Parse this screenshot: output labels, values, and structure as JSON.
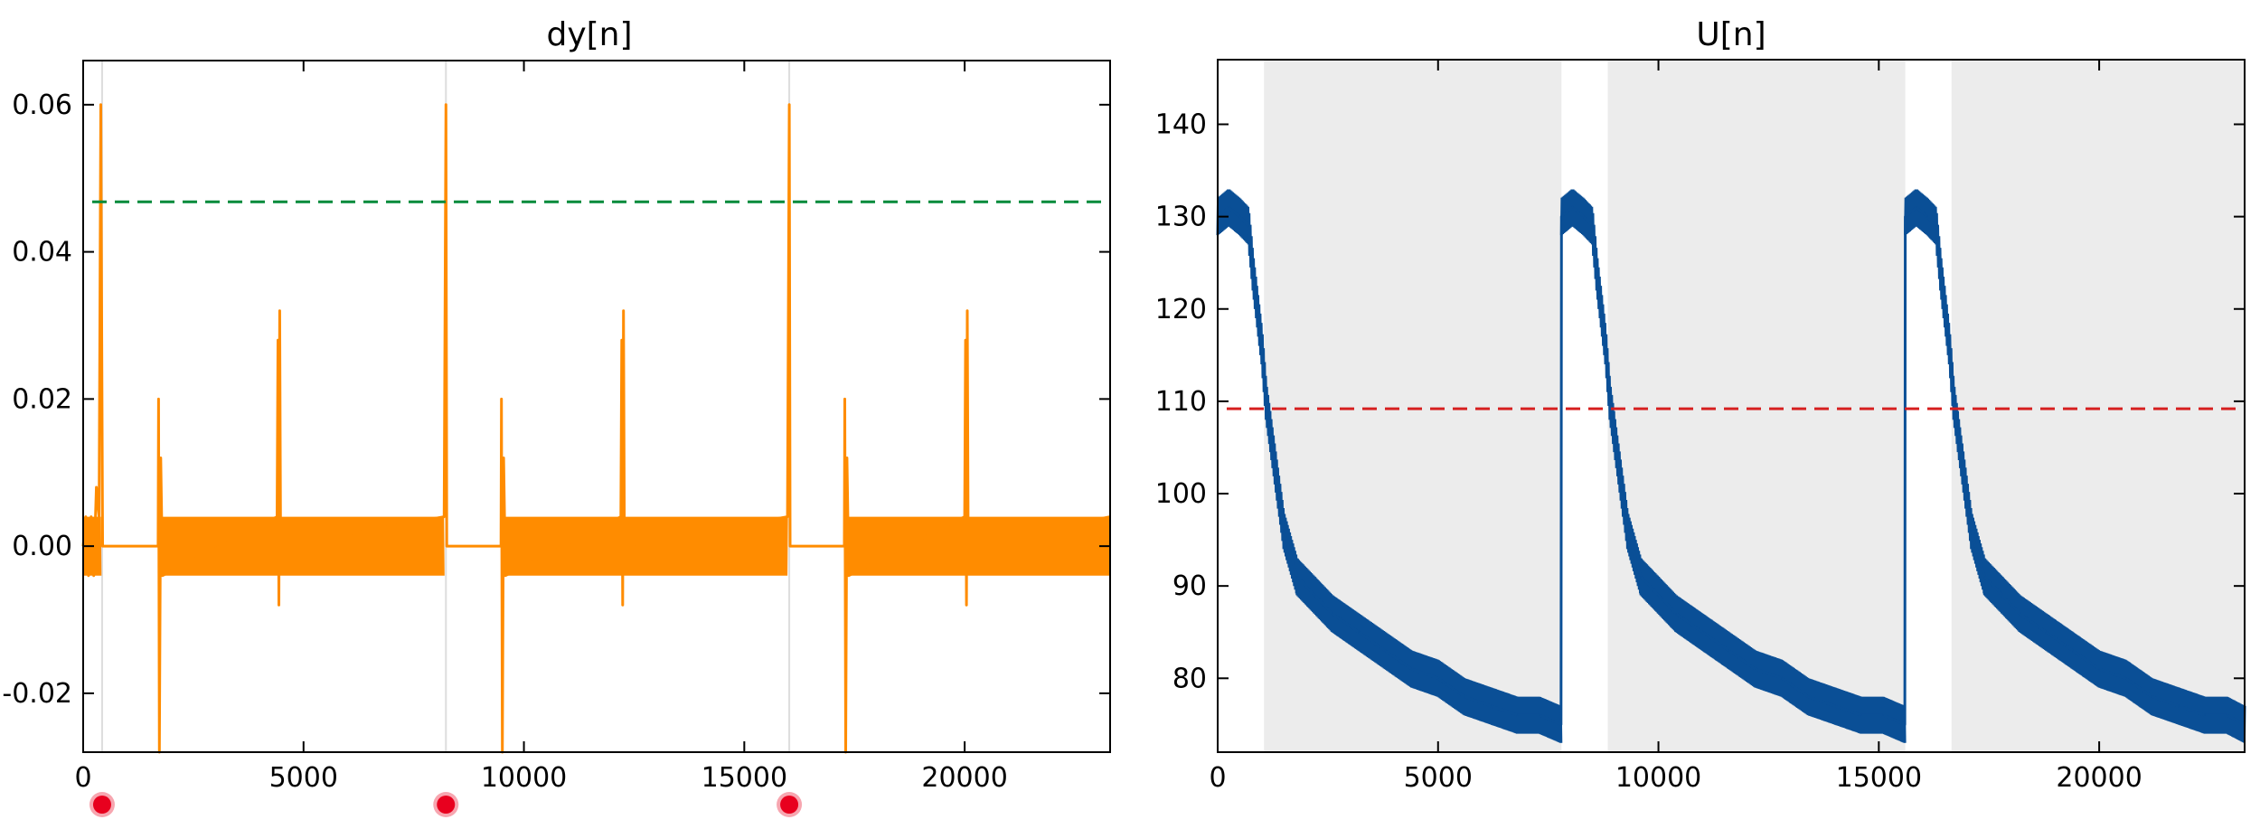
{
  "chart_data": [
    {
      "type": "line",
      "title": "dy[n]",
      "xlabel": "",
      "ylabel": "",
      "xlim": [
        0,
        23300
      ],
      "ylim": [
        -0.028,
        0.066
      ],
      "xticks": [
        0,
        5000,
        10000,
        15000,
        20000
      ],
      "xtick_labels": [
        "0",
        "5000",
        "10000",
        "15000",
        "20000"
      ],
      "yticks": [
        -0.02,
        0.0,
        0.02,
        0.04,
        0.06
      ],
      "ytick_labels": [
        "-0.02",
        "0.00",
        "0.02",
        "0.04",
        "0.06"
      ],
      "grid": false,
      "threshold": {
        "y": 0.0468,
        "color": "#008a3a",
        "style": "dashed"
      },
      "event_markers": {
        "x": [
          430,
          8230,
          16020
        ],
        "color": "#e8001e",
        "line_color": "#dddddd"
      },
      "series": [
        {
          "color": "#ff8c00",
          "points": [
            [
              0,
              0.0
            ],
            [
              60,
              0.004
            ],
            [
              120,
              -0.004
            ],
            [
              180,
              0.004
            ],
            [
              240,
              -0.004
            ],
            [
              300,
              0.008
            ],
            [
              360,
              0.004
            ],
            [
              400,
              0.06
            ],
            [
              440,
              0.0
            ],
            [
              1700,
              0.0
            ],
            [
              1710,
              0.02
            ],
            [
              1730,
              -0.028
            ],
            [
              1760,
              0.012
            ],
            [
              1800,
              -0.004
            ],
            [
              4400,
              0.004
            ],
            [
              4420,
              0.028
            ],
            [
              4440,
              -0.008
            ],
            [
              4460,
              0.032
            ],
            [
              4480,
              0.0
            ],
            [
              8190,
              0.004
            ],
            [
              8230,
              0.06
            ],
            [
              8250,
              0.0
            ],
            [
              9480,
              0.0
            ],
            [
              9490,
              0.02
            ],
            [
              9510,
              -0.028
            ],
            [
              9540,
              0.012
            ],
            [
              9580,
              -0.004
            ],
            [
              12200,
              0.004
            ],
            [
              12220,
              0.028
            ],
            [
              12240,
              -0.008
            ],
            [
              12260,
              0.032
            ],
            [
              12280,
              0.0
            ],
            [
              15980,
              0.004
            ],
            [
              16020,
              0.06
            ],
            [
              16040,
              0.0
            ],
            [
              17270,
              0.0
            ],
            [
              17280,
              0.02
            ],
            [
              17300,
              -0.028
            ],
            [
              17330,
              0.012
            ],
            [
              17370,
              -0.004
            ],
            [
              20000,
              0.004
            ],
            [
              20020,
              0.028
            ],
            [
              20040,
              -0.008
            ],
            [
              20060,
              0.032
            ],
            [
              20080,
              0.0
            ],
            [
              23300,
              0.004
            ]
          ],
          "noise_bands": [
            {
              "x": [
                0,
                400
              ],
              "y": [
                -0.004,
                0.004
              ]
            },
            {
              "x": [
                1760,
                8190
              ],
              "y": [
                -0.004,
                0.004
              ]
            },
            {
              "x": [
                9540,
                15980
              ],
              "y": [
                -0.004,
                0.004
              ]
            },
            {
              "x": [
                17330,
                23300
              ],
              "y": [
                -0.004,
                0.004
              ]
            }
          ]
        }
      ]
    },
    {
      "type": "line",
      "title": "U[n]",
      "xlabel": "",
      "ylabel": "",
      "xlim": [
        0,
        23300
      ],
      "ylim": [
        72,
        147
      ],
      "xticks": [
        0,
        5000,
        10000,
        15000,
        20000
      ],
      "xtick_labels": [
        "0",
        "5000",
        "10000",
        "15000",
        "20000"
      ],
      "yticks": [
        80,
        90,
        100,
        110,
        120,
        130,
        140
      ],
      "ytick_labels": [
        "80",
        "90",
        "100",
        "110",
        "120",
        "130",
        "140"
      ],
      "grid": false,
      "threshold": {
        "y": 109.2,
        "color": "#d62020",
        "style": "dashed"
      },
      "shaded_regions": {
        "color": "#ececec",
        "ranges": [
          [
            1050,
            7800
          ],
          [
            8850,
            15600
          ],
          [
            16650,
            23300
          ]
        ]
      },
      "series": [
        {
          "color": "#0a4f96",
          "points": [
            [
              0,
              130
            ],
            [
              250,
              131
            ],
            [
              500,
              130
            ],
            [
              700,
              129
            ],
            [
              800,
              124
            ],
            [
              1000,
              116
            ],
            [
              1100,
              110
            ],
            [
              1300,
              103
            ],
            [
              1500,
              96
            ],
            [
              1800,
              91
            ],
            [
              2200,
              89
            ],
            [
              2600,
              87
            ],
            [
              3200,
              85
            ],
            [
              3800,
              83
            ],
            [
              4400,
              81
            ],
            [
              5000,
              80
            ],
            [
              5600,
              78
            ],
            [
              6200,
              77
            ],
            [
              6800,
              76
            ],
            [
              7300,
              76
            ],
            [
              7790,
              75
            ],
            [
              7800,
              130
            ],
            [
              8050,
              131
            ],
            [
              8300,
              130
            ],
            [
              8500,
              129
            ],
            [
              8600,
              124
            ],
            [
              8800,
              116
            ],
            [
              8900,
              110
            ],
            [
              9100,
              103
            ],
            [
              9300,
              96
            ],
            [
              9600,
              91
            ],
            [
              10000,
              89
            ],
            [
              10400,
              87
            ],
            [
              11000,
              85
            ],
            [
              11600,
              83
            ],
            [
              12200,
              81
            ],
            [
              12800,
              80
            ],
            [
              13400,
              78
            ],
            [
              14000,
              77
            ],
            [
              14600,
              76
            ],
            [
              15100,
              76
            ],
            [
              15590,
              75
            ],
            [
              15600,
              130
            ],
            [
              15850,
              131
            ],
            [
              16100,
              130
            ],
            [
              16300,
              129
            ],
            [
              16400,
              124
            ],
            [
              16600,
              116
            ],
            [
              16700,
              110
            ],
            [
              16900,
              103
            ],
            [
              17100,
              96
            ],
            [
              17400,
              91
            ],
            [
              17800,
              89
            ],
            [
              18200,
              87
            ],
            [
              18800,
              85
            ],
            [
              19400,
              83
            ],
            [
              20000,
              81
            ],
            [
              20600,
              80
            ],
            [
              21200,
              78
            ],
            [
              21800,
              77
            ],
            [
              22400,
              76
            ],
            [
              22900,
              76
            ],
            [
              23300,
              75
            ]
          ],
          "band_halfwidth": 2
        }
      ]
    }
  ]
}
